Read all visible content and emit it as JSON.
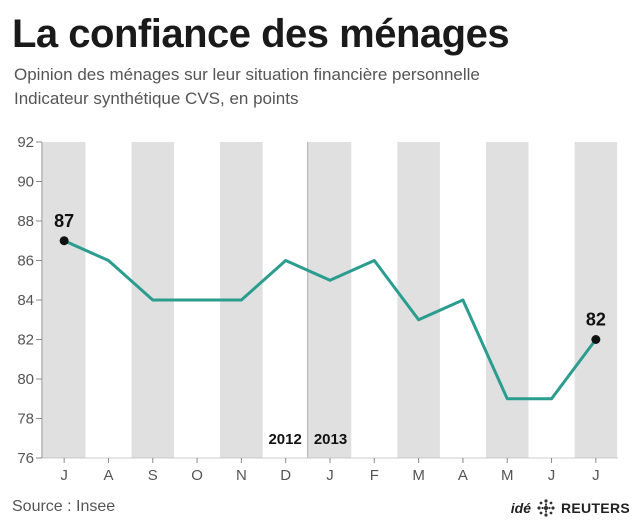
{
  "header": {
    "title": "La confiance des ménages",
    "subtitle_line1": "Opinion des ménages sur leur situation financière personnelle",
    "subtitle_line2": "Indicateur synthétique CVS,  en points"
  },
  "footer": {
    "source": "Source : Insee",
    "credit_ide": "idé",
    "credit_reuters": "REUTERS"
  },
  "colors": {
    "line": "#2a9d8f",
    "band": "#e0e0e0",
    "grid": "#bdbdbd",
    "text": "#333333"
  },
  "chart_data": {
    "type": "line",
    "title": "La confiance des ménages",
    "x": [
      "J",
      "A",
      "S",
      "O",
      "N",
      "D",
      "J",
      "F",
      "M",
      "A",
      "M",
      "J",
      "J"
    ],
    "series": [
      {
        "values": [
          87,
          86,
          84,
          84,
          84,
          86,
          85,
          86,
          83,
          84,
          79,
          79,
          82
        ]
      }
    ],
    "data_labels": [
      {
        "index": 0,
        "text": "87"
      },
      {
        "index": 12,
        "text": "82"
      }
    ],
    "year_labels": [
      {
        "text": "2012",
        "side": "left-of-divider"
      },
      {
        "text": "2013",
        "side": "right-of-divider"
      }
    ],
    "year_divider_between": [
      5,
      6
    ],
    "ylim": [
      76,
      92
    ],
    "yticks": [
      76,
      78,
      80,
      82,
      84,
      86,
      88,
      90,
      92
    ],
    "alternating_bands": true,
    "grid": false,
    "legend": "none"
  }
}
